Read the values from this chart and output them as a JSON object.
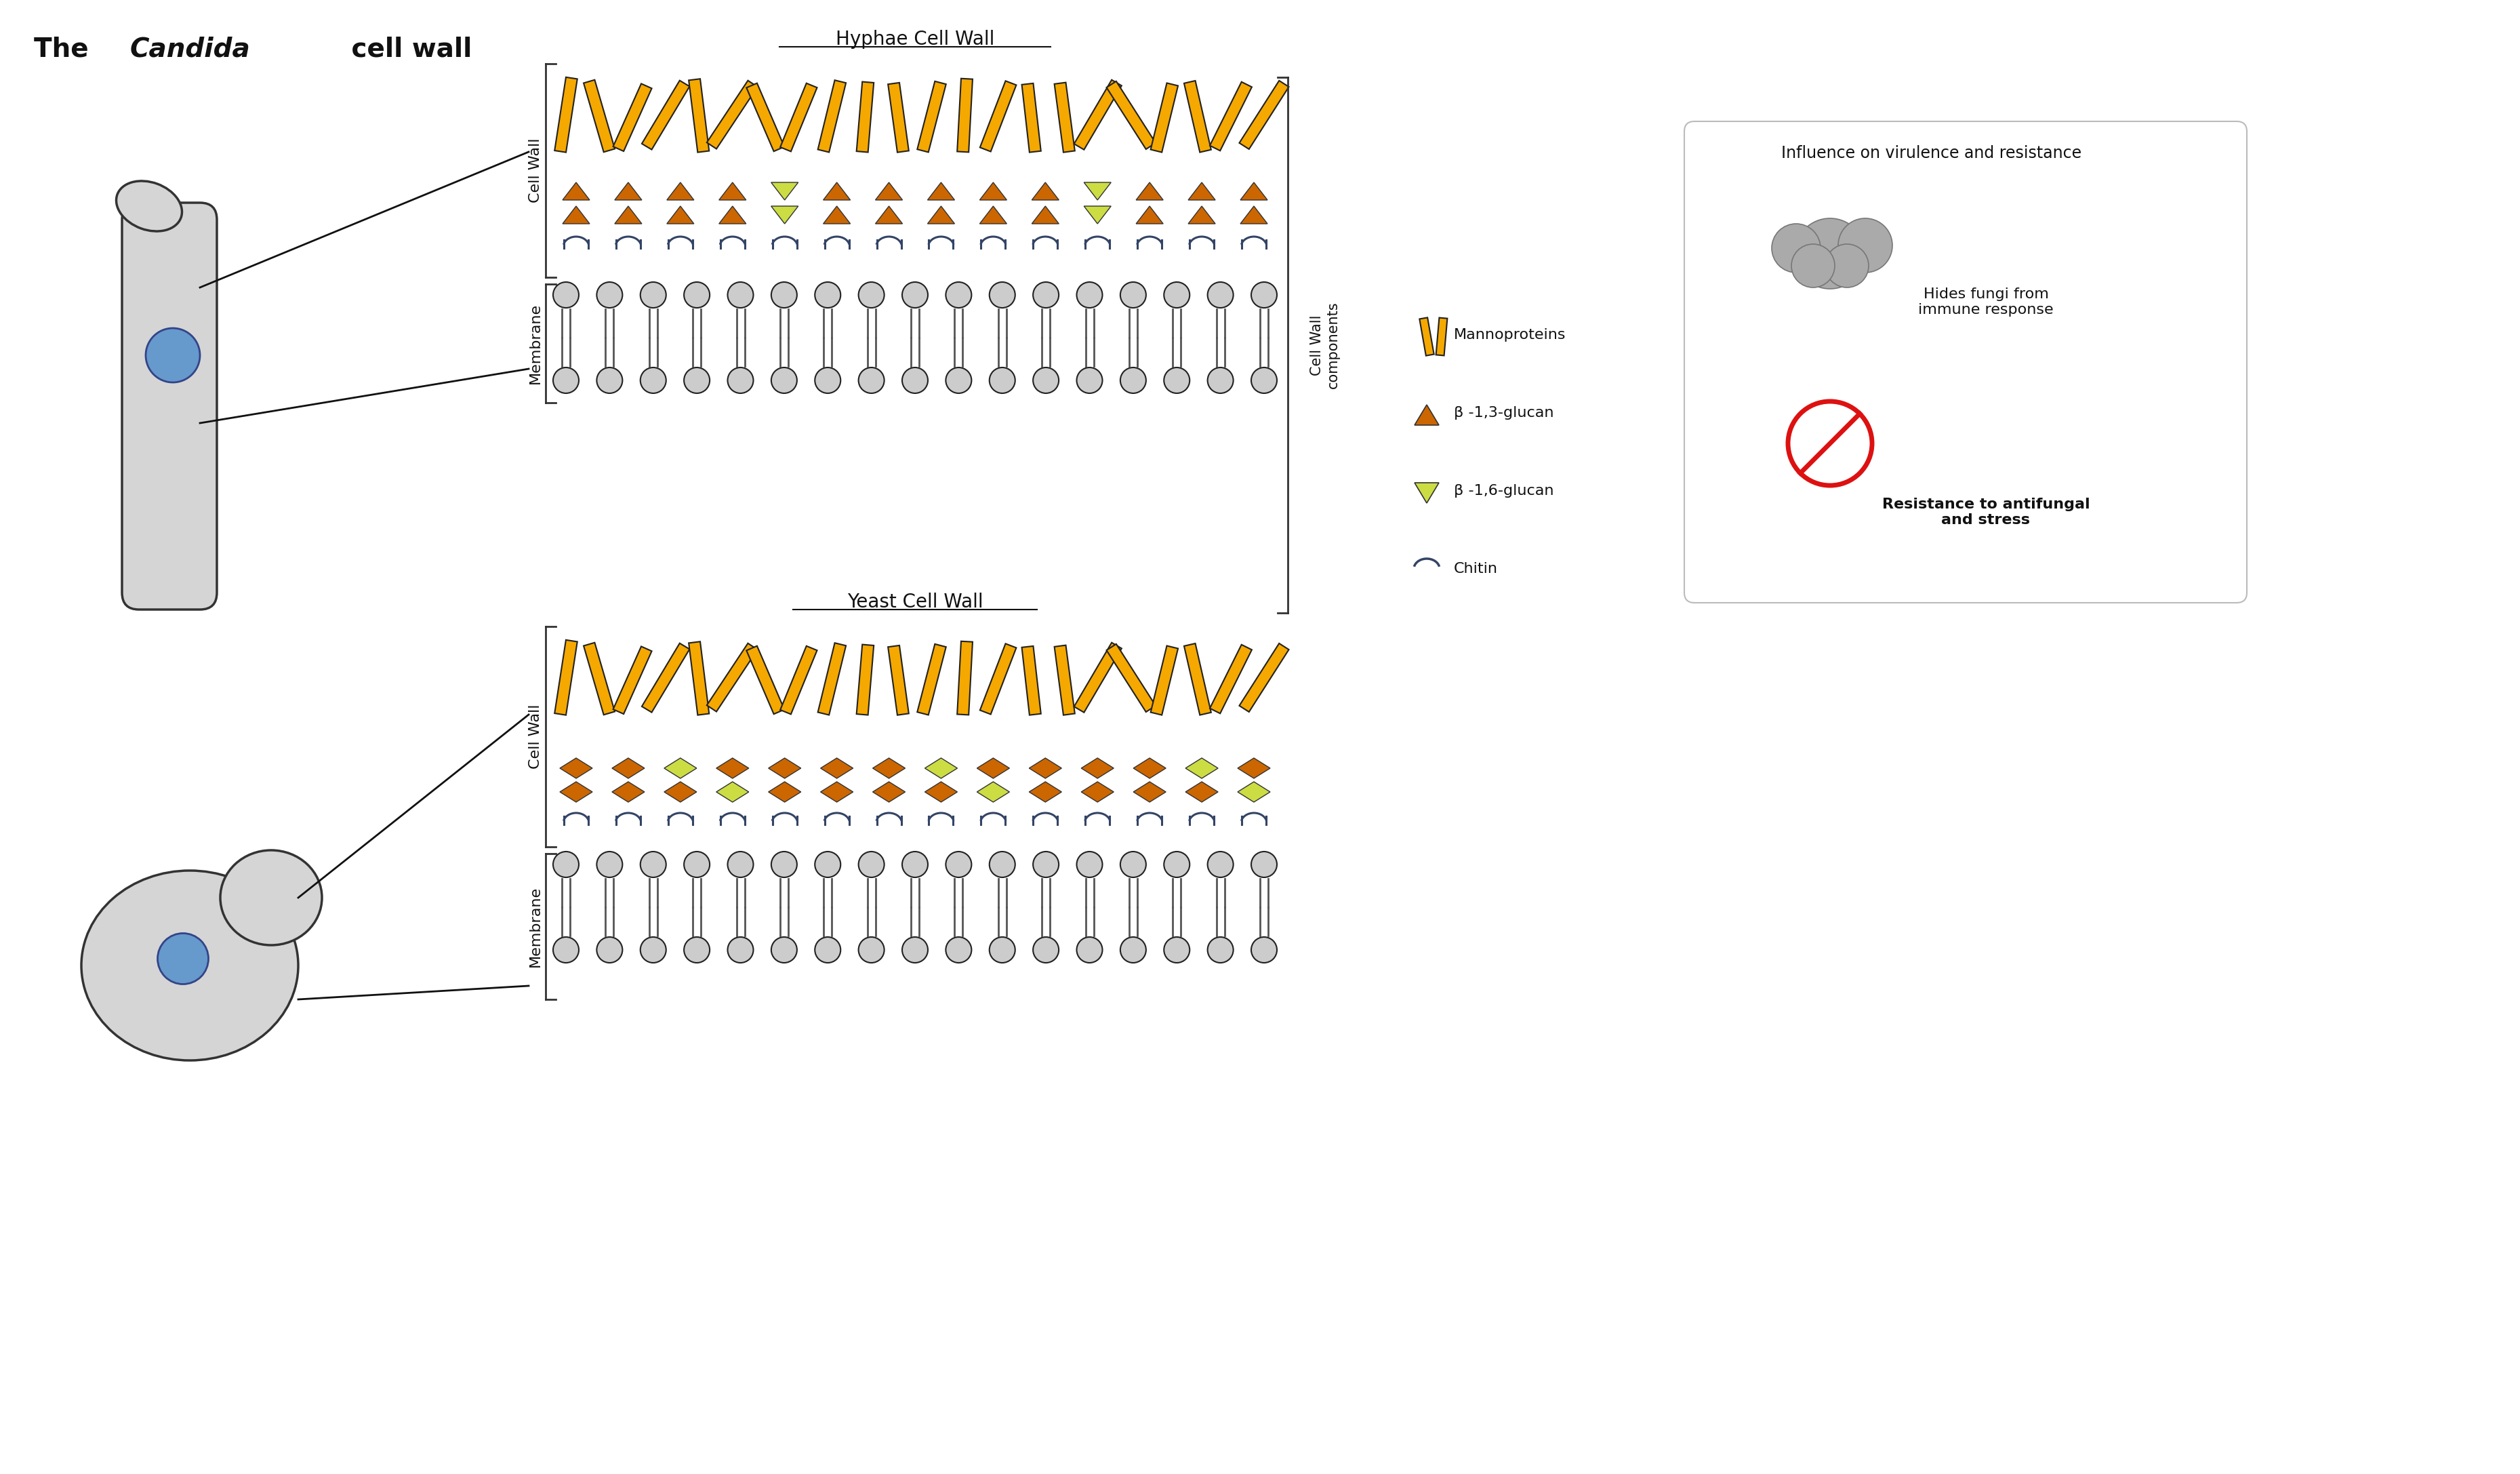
{
  "title_text": "The ",
  "title_italic": "Candida",
  "title_rest": " cell wall",
  "hyphae_title": "Hyphae Cell Wall",
  "yeast_title": "Yeast Cell Wall",
  "cell_wall_label": "Cell Wall",
  "membrane_label": "Membrane",
  "cell_wall_components_label": "Cell Wall\ncomponents",
  "influence_label": "Influence on virulence and resistance",
  "legend_items": [
    "Mannoproteins",
    "β -1,3-glucan",
    "β -1,6-glucan",
    "Chitin"
  ],
  "effect1": "Hides fungi from\nimmune response",
  "effect2": "Resistance to antifungal\nand stress",
  "mannoprotein_color": "#F5A800",
  "mannoprotein_stripe": "#222222",
  "beta13_color": "#CC6600",
  "beta16_color": "#CCDD44",
  "chitin_color": "#AABBDD",
  "membrane_circle_color": "#CCCCCC",
  "bg_color": "#FFFFFF",
  "bracket_color": "#333333",
  "text_color": "#111111"
}
